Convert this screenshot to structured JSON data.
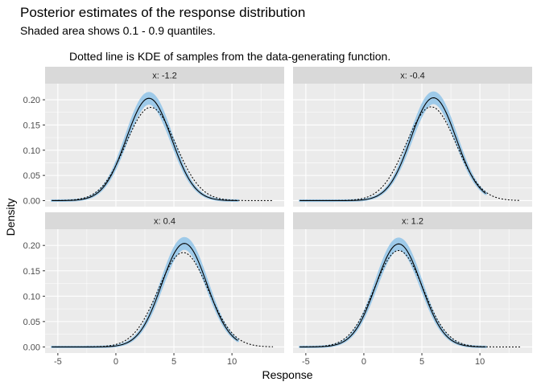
{
  "chart_data": {
    "type": "line",
    "title": "Posterior estimates of the response distribution",
    "subtitle": "Shaded area shows 0.1 - 0.9 quantiles.",
    "caption": "Dotted line is KDE of samples from the data-generating function.",
    "xlabel": "Response",
    "ylabel": "Density",
    "xlim": [
      -6.1,
      14.5
    ],
    "ylim": [
      -0.012,
      0.232
    ],
    "x_ticks": [
      -5,
      0,
      5,
      10
    ],
    "x_tick_labels": [
      "-5",
      "0",
      "5",
      "10"
    ],
    "y_ticks": [
      0.0,
      0.05,
      0.1,
      0.15,
      0.2
    ],
    "y_tick_labels": [
      "0.00",
      "0.05",
      "0.10",
      "0.15",
      "0.20"
    ],
    "grid": true,
    "colors": {
      "panel_bg": "#EBEBEB",
      "strip_bg": "#D9D9D9",
      "ribbon": "#9ECAE9",
      "posterior_line": "#000000",
      "kde_line": "#000000"
    },
    "panels": [
      {
        "label": "x: -1.2",
        "posterior": {
          "mean": 2.85,
          "sd": 1.95,
          "x_range": [
            -5.5,
            10.5
          ],
          "peak": 0.203,
          "band_lower": 0.193,
          "band_upper": 0.213
        },
        "kde": {
          "mean": 3.0,
          "sd": 2.15,
          "x_range": [
            -5.5,
            13.5
          ],
          "peak": 0.185
        }
      },
      {
        "label": "x: -0.4",
        "posterior": {
          "mean": 6.0,
          "sd": 1.95,
          "x_range": [
            -5.5,
            10.5
          ],
          "peak": 0.204,
          "band_lower": 0.194,
          "band_upper": 0.214
        },
        "kde": {
          "mean": 5.8,
          "sd": 2.15,
          "x_range": [
            -5.5,
            13.5
          ],
          "peak": 0.186
        }
      },
      {
        "label": "x: 0.4",
        "posterior": {
          "mean": 5.9,
          "sd": 1.95,
          "x_range": [
            -5.5,
            10.5
          ],
          "peak": 0.204,
          "band_lower": 0.194,
          "band_upper": 0.214
        },
        "kde": {
          "mean": 5.8,
          "sd": 2.15,
          "x_range": [
            -5.5,
            13.5
          ],
          "peak": 0.186
        }
      },
      {
        "label": "x: 1.2",
        "posterior": {
          "mean": 3.0,
          "sd": 1.95,
          "x_range": [
            -5.5,
            10.5
          ],
          "peak": 0.203,
          "band_lower": 0.193,
          "band_upper": 0.213
        },
        "kde": {
          "mean": 3.0,
          "sd": 2.1,
          "x_range": [
            -5.5,
            13.5
          ],
          "peak": 0.19
        }
      }
    ]
  }
}
